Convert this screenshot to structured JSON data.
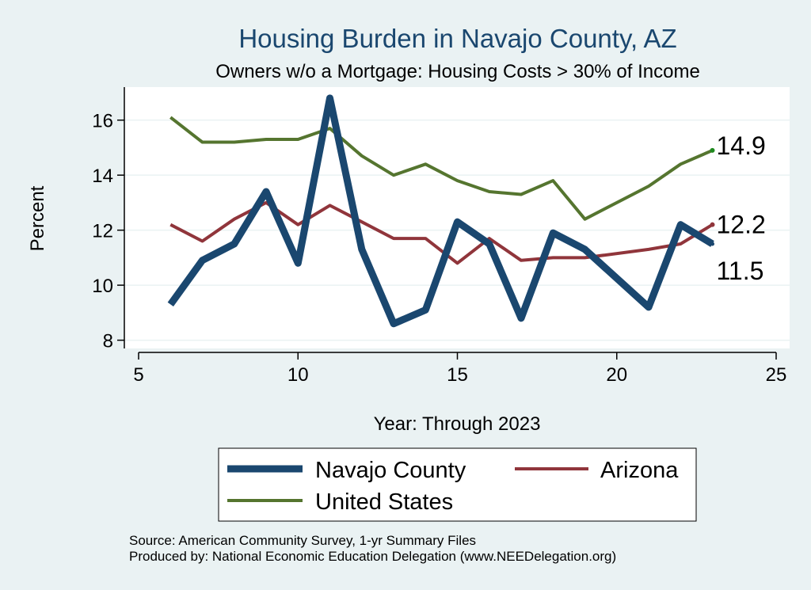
{
  "chart_data": {
    "type": "line",
    "title": "Housing Burden in Navajo County, AZ",
    "subtitle": "Owners w/o a Mortgage: Housing Costs > 30% of Income",
    "xlabel": "Year: Through 2023",
    "ylabel": "Percent",
    "xlim": [
      5,
      25
    ],
    "ylim": [
      7.7,
      17.2
    ],
    "xticks": [
      5,
      10,
      15,
      20,
      25
    ],
    "yticks": [
      8,
      10,
      12,
      14,
      16
    ],
    "x": [
      6,
      7,
      8,
      9,
      10,
      11,
      12,
      13,
      14,
      15,
      16,
      17,
      18,
      19,
      21,
      22,
      23
    ],
    "series": [
      {
        "name": "Navajo County",
        "color": "#1a476f",
        "values": [
          9.3,
          10.9,
          11.5,
          13.4,
          10.8,
          16.8,
          11.3,
          8.6,
          9.1,
          12.3,
          11.5,
          8.8,
          11.9,
          11.3,
          9.2,
          12.2,
          11.5
        ],
        "end_label": "11.5"
      },
      {
        "name": "Arizona",
        "color": "#90353b",
        "values": [
          12.2,
          11.6,
          12.4,
          13.0,
          12.2,
          12.9,
          12.3,
          11.7,
          11.7,
          10.8,
          11.7,
          10.9,
          11.0,
          11.0,
          11.3,
          11.5,
          12.2
        ],
        "end_label": "12.2"
      },
      {
        "name": "United States",
        "color": "#55752f",
        "values": [
          16.1,
          15.2,
          15.2,
          15.3,
          15.3,
          15.7,
          14.7,
          14.0,
          14.4,
          13.8,
          13.4,
          13.3,
          13.8,
          12.4,
          13.6,
          14.4,
          14.9
        ],
        "end_label": "14.9"
      }
    ],
    "legend": [
      "Navajo County",
      "Arizona",
      "United States"
    ],
    "legend_position": "bottom",
    "grid": true
  },
  "source_note": {
    "line1": "Source: American Community Survey, 1-yr Summary Files",
    "line2": "Produced by: National Economic Education Delegation (www.NEEDelegation.org)"
  }
}
